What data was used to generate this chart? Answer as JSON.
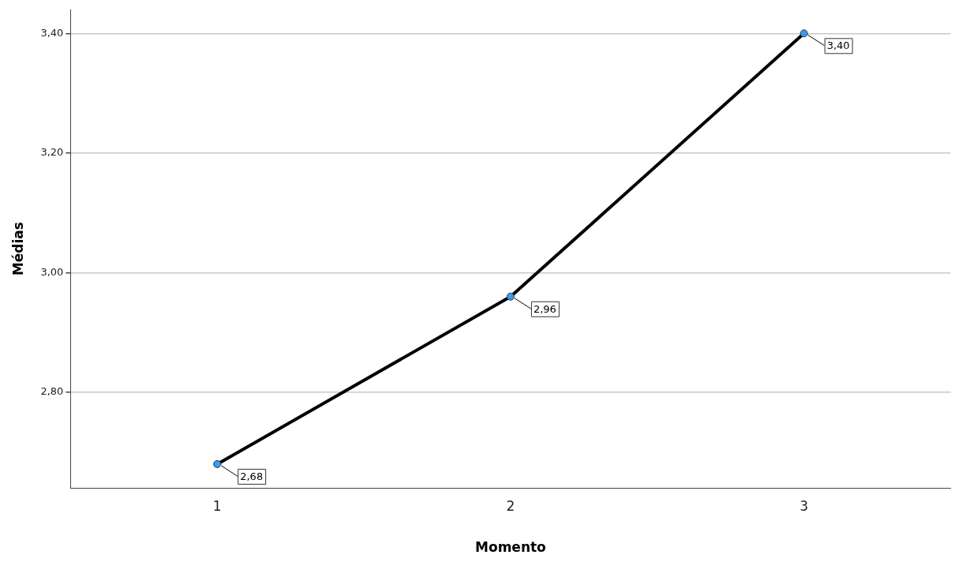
{
  "chart_data": {
    "type": "line",
    "xlabel": "Momento",
    "ylabel": "Médias",
    "categories": [
      "1",
      "2",
      "3"
    ],
    "series": [
      {
        "color": "#000000",
        "values": [
          2.68,
          2.96,
          3.4
        ],
        "value_labels": [
          "2,68",
          "2,96",
          "3,40"
        ]
      }
    ],
    "ylim": [
      2.64,
      3.44
    ],
    "yticks": [
      {
        "value": 2.8,
        "label": "2,80"
      },
      {
        "value": 3.0,
        "label": "3,00"
      },
      {
        "value": 3.2,
        "label": "3,20"
      },
      {
        "value": 3.4,
        "label": "3,40"
      }
    ],
    "grid": "y",
    "legend": false,
    "marker": "circle",
    "line_style": "solid"
  }
}
